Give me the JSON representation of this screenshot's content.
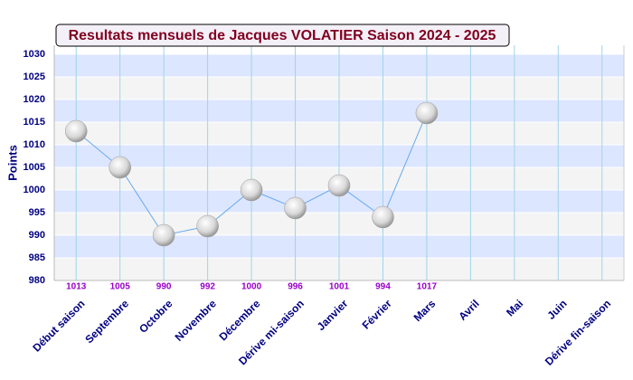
{
  "chart_data": {
    "type": "line",
    "title": "Resultats mensuels de Jacques VOLATIER Saison 2024 - 2025",
    "y_label": "Points",
    "categories": [
      "Début saison",
      "Septembre",
      "Octobre",
      "Novembre",
      "Décembre",
      "Dérive mi-saison",
      "Janvier",
      "Février",
      "Mars",
      "Avril",
      "Mai",
      "Juin",
      "Dérive fin-saison"
    ],
    "values": [
      1013,
      1005,
      990,
      992,
      1000,
      996,
      1001,
      994,
      1017,
      null,
      null,
      null,
      null
    ],
    "color": "#66aaee",
    "ylim": [
      980,
      1030
    ],
    "yticks": [
      980,
      985,
      990,
      995,
      1000,
      1005,
      1010,
      1015,
      1020,
      1025,
      1030
    ],
    "grid": true
  }
}
